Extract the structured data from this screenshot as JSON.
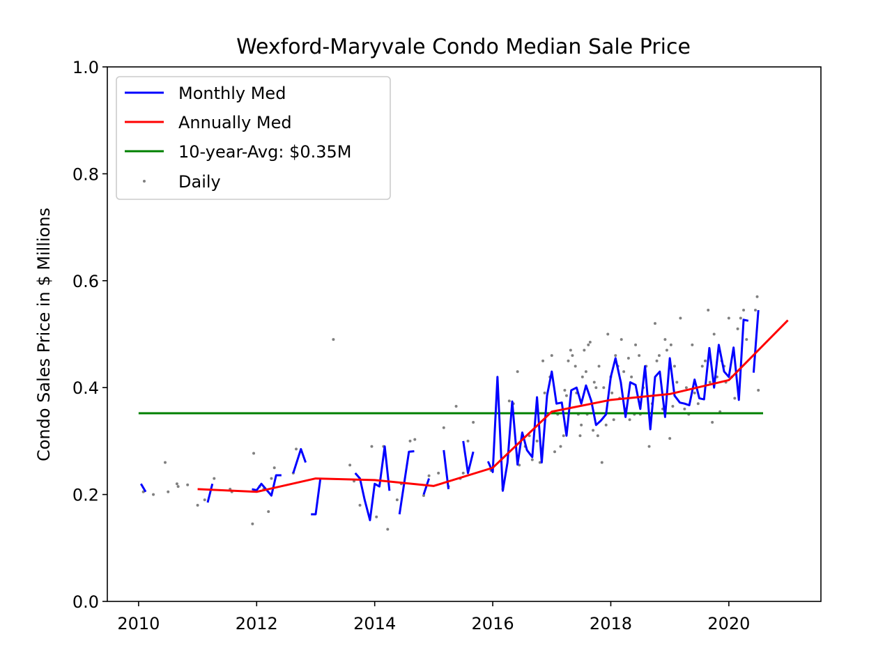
{
  "chart_data": {
    "type": "line",
    "title": "Wexford-Maryvale Condo Median Sale Price",
    "xlabel": "",
    "ylabel": "Condo Sales Price in $ Millions",
    "xlim": [
      2009.47,
      2021.56
    ],
    "ylim": [
      0.0,
      1.0
    ],
    "x_ticks": [
      2010,
      2012,
      2014,
      2016,
      2018,
      2020
    ],
    "y_ticks": [
      0.0,
      0.2,
      0.4,
      0.6,
      0.8,
      1.0
    ],
    "y_tick_labels": [
      "0.0",
      "0.2",
      "0.4",
      "0.6",
      "0.8",
      "1.0"
    ],
    "grid": false,
    "legend_position": "upper-left",
    "colors": {
      "monthly": "#0000ff",
      "annual": "#ff0000",
      "avg": "#008000",
      "daily": "#808080",
      "axes": "#000000",
      "legend_border": "#cccccc"
    },
    "legend": [
      {
        "label": "Monthly Med",
        "kind": "line",
        "color_key": "monthly"
      },
      {
        "label": "Annually Med",
        "kind": "line",
        "color_key": "annual"
      },
      {
        "label": "10-year-Avg: $0.35M",
        "kind": "line",
        "color_key": "avg"
      },
      {
        "label": "Daily",
        "kind": "dot",
        "color_key": "daily"
      }
    ],
    "series": [
      {
        "name": "Monthly Med",
        "kind": "segments",
        "segments": [
          [
            [
              2010.04,
              0.22
            ],
            [
              2010.12,
              0.205
            ]
          ],
          [
            [
              2011.17,
              0.185
            ],
            [
              2011.25,
              0.22
            ]
          ],
          [
            [
              2011.92,
              0.21
            ],
            [
              2012.0,
              0.208
            ],
            [
              2012.08,
              0.22
            ],
            [
              2012.25,
              0.198
            ],
            [
              2012.33,
              0.236
            ],
            [
              2012.42,
              0.236
            ]
          ],
          [
            [
              2012.62,
              0.24
            ],
            [
              2012.75,
              0.285
            ],
            [
              2012.83,
              0.26
            ]
          ],
          [
            [
              2012.92,
              0.163
            ],
            [
              2013.0,
              0.163
            ],
            [
              2013.08,
              0.23
            ]
          ],
          [
            [
              2013.67,
              0.24
            ],
            [
              2013.75,
              0.23
            ],
            [
              2013.83,
              0.19
            ],
            [
              2013.92,
              0.152
            ],
            [
              2014.0,
              0.22
            ],
            [
              2014.08,
              0.215
            ],
            [
              2014.17,
              0.29
            ],
            [
              2014.25,
              0.207
            ]
          ],
          [
            [
              2014.42,
              0.163
            ],
            [
              2014.58,
              0.28
            ],
            [
              2014.67,
              0.281
            ]
          ],
          [
            [
              2014.83,
              0.2
            ],
            [
              2014.92,
              0.23
            ]
          ],
          [
            [
              2015.17,
              0.283
            ],
            [
              2015.25,
              0.21
            ]
          ],
          [
            [
              2015.5,
              0.3
            ],
            [
              2015.58,
              0.24
            ],
            [
              2015.67,
              0.28
            ]
          ],
          [
            [
              2015.92,
              0.262
            ],
            [
              2016.0,
              0.242
            ],
            [
              2016.08,
              0.42
            ],
            [
              2016.17,
              0.207
            ],
            [
              2016.25,
              0.26
            ],
            [
              2016.33,
              0.374
            ],
            [
              2016.42,
              0.256
            ],
            [
              2016.5,
              0.316
            ],
            [
              2016.58,
              0.283
            ],
            [
              2016.67,
              0.27
            ],
            [
              2016.75,
              0.382
            ],
            [
              2016.83,
              0.26
            ],
            [
              2016.92,
              0.385
            ],
            [
              2017.0,
              0.43
            ],
            [
              2017.08,
              0.37
            ],
            [
              2017.17,
              0.372
            ],
            [
              2017.25,
              0.31
            ],
            [
              2017.33,
              0.395
            ],
            [
              2017.42,
              0.4
            ],
            [
              2017.5,
              0.37
            ],
            [
              2017.58,
              0.404
            ],
            [
              2017.67,
              0.375
            ],
            [
              2017.75,
              0.33
            ],
            [
              2017.83,
              0.338
            ],
            [
              2017.92,
              0.35
            ],
            [
              2018.0,
              0.42
            ],
            [
              2018.08,
              0.455
            ],
            [
              2018.17,
              0.41
            ],
            [
              2018.25,
              0.345
            ],
            [
              2018.33,
              0.41
            ],
            [
              2018.42,
              0.405
            ],
            [
              2018.5,
              0.36
            ],
            [
              2018.58,
              0.44
            ],
            [
              2018.67,
              0.322
            ],
            [
              2018.75,
              0.42
            ],
            [
              2018.83,
              0.43
            ],
            [
              2018.92,
              0.345
            ],
            [
              2019.0,
              0.455
            ],
            [
              2019.08,
              0.385
            ],
            [
              2019.17,
              0.372
            ],
            [
              2019.25,
              0.37
            ],
            [
              2019.33,
              0.367
            ],
            [
              2019.42,
              0.415
            ],
            [
              2019.5,
              0.38
            ],
            [
              2019.58,
              0.378
            ],
            [
              2019.67,
              0.474
            ],
            [
              2019.75,
              0.4
            ],
            [
              2019.83,
              0.48
            ],
            [
              2019.92,
              0.43
            ],
            [
              2020.0,
              0.42
            ],
            [
              2020.08,
              0.475
            ],
            [
              2020.17,
              0.377
            ],
            [
              2020.25,
              0.527
            ],
            [
              2020.33,
              0.525
            ]
          ],
          [
            [
              2020.42,
              0.428
            ],
            [
              2020.5,
              0.545
            ]
          ]
        ]
      },
      {
        "name": "Annually Med",
        "kind": "line",
        "points": [
          [
            2011.0,
            0.21
          ],
          [
            2012.0,
            0.205
          ],
          [
            2013.0,
            0.23
          ],
          [
            2014.0,
            0.227
          ],
          [
            2015.0,
            0.216
          ],
          [
            2016.0,
            0.25
          ],
          [
            2017.0,
            0.355
          ],
          [
            2018.0,
            0.377
          ],
          [
            2019.0,
            0.388
          ],
          [
            2020.0,
            0.414
          ],
          [
            2021.0,
            0.526
          ]
        ]
      },
      {
        "name": "10-year-Avg: $0.35M",
        "kind": "line",
        "points": [
          [
            2010.0,
            0.352
          ],
          [
            2020.58,
            0.352
          ]
        ]
      },
      {
        "name": "Daily",
        "kind": "scatter",
        "points": [
          [
            2010.08,
            0.205
          ],
          [
            2010.25,
            0.2
          ],
          [
            2010.45,
            0.26
          ],
          [
            2010.5,
            0.205
          ],
          [
            2010.65,
            0.22
          ],
          [
            2010.67,
            0.215
          ],
          [
            2010.83,
            0.218
          ],
          [
            2011.0,
            0.18
          ],
          [
            2011.12,
            0.19
          ],
          [
            2011.28,
            0.23
          ],
          [
            2011.55,
            0.21
          ],
          [
            2011.58,
            0.205
          ],
          [
            2011.93,
            0.145
          ],
          [
            2011.95,
            0.277
          ],
          [
            2012.05,
            0.215
          ],
          [
            2012.12,
            0.21
          ],
          [
            2012.2,
            0.168
          ],
          [
            2012.25,
            0.23
          ],
          [
            2012.3,
            0.25
          ],
          [
            2012.62,
            0.24
          ],
          [
            2012.67,
            0.285
          ],
          [
            2013.3,
            0.49
          ],
          [
            2013.58,
            0.255
          ],
          [
            2013.65,
            0.225
          ],
          [
            2013.75,
            0.18
          ],
          [
            2013.95,
            0.29
          ],
          [
            2014.03,
            0.158
          ],
          [
            2014.15,
            0.29
          ],
          [
            2014.22,
            0.135
          ],
          [
            2014.38,
            0.19
          ],
          [
            2014.45,
            0.22
          ],
          [
            2014.6,
            0.3
          ],
          [
            2014.68,
            0.303
          ],
          [
            2014.83,
            0.198
          ],
          [
            2014.92,
            0.235
          ],
          [
            2015.08,
            0.24
          ],
          [
            2015.17,
            0.325
          ],
          [
            2015.25,
            0.215
          ],
          [
            2015.38,
            0.365
          ],
          [
            2015.45,
            0.23
          ],
          [
            2015.5,
            0.24
          ],
          [
            2015.58,
            0.3
          ],
          [
            2015.67,
            0.335
          ],
          [
            2015.97,
            0.245
          ],
          [
            2016.17,
            0.21
          ],
          [
            2016.28,
            0.375
          ],
          [
            2016.35,
            0.37
          ],
          [
            2016.42,
            0.43
          ],
          [
            2016.45,
            0.255
          ],
          [
            2016.55,
            0.29
          ],
          [
            2016.62,
            0.31
          ],
          [
            2016.67,
            0.265
          ],
          [
            2016.75,
            0.3
          ],
          [
            2016.8,
            0.26
          ],
          [
            2016.85,
            0.45
          ],
          [
            2016.88,
            0.39
          ],
          [
            2016.97,
            0.42
          ],
          [
            2017.0,
            0.46
          ],
          [
            2017.05,
            0.28
          ],
          [
            2017.1,
            0.35
          ],
          [
            2017.15,
            0.29
          ],
          [
            2017.2,
            0.31
          ],
          [
            2017.22,
            0.395
          ],
          [
            2017.25,
            0.385
          ],
          [
            2017.28,
            0.45
          ],
          [
            2017.32,
            0.47
          ],
          [
            2017.35,
            0.46
          ],
          [
            2017.4,
            0.44
          ],
          [
            2017.42,
            0.39
          ],
          [
            2017.45,
            0.35
          ],
          [
            2017.48,
            0.31
          ],
          [
            2017.5,
            0.33
          ],
          [
            2017.52,
            0.42
          ],
          [
            2017.55,
            0.47
          ],
          [
            2017.58,
            0.43
          ],
          [
            2017.6,
            0.35
          ],
          [
            2017.62,
            0.48
          ],
          [
            2017.65,
            0.485
          ],
          [
            2017.7,
            0.32
          ],
          [
            2017.72,
            0.41
          ],
          [
            2017.75,
            0.4
          ],
          [
            2017.78,
            0.31
          ],
          [
            2017.8,
            0.44
          ],
          [
            2017.85,
            0.26
          ],
          [
            2017.88,
            0.4
          ],
          [
            2017.92,
            0.33
          ],
          [
            2017.95,
            0.5
          ],
          [
            2018.0,
            0.42
          ],
          [
            2018.02,
            0.39
          ],
          [
            2018.05,
            0.34
          ],
          [
            2018.08,
            0.46
          ],
          [
            2018.12,
            0.44
          ],
          [
            2018.15,
            0.38
          ],
          [
            2018.18,
            0.49
          ],
          [
            2018.22,
            0.43
          ],
          [
            2018.25,
            0.36
          ],
          [
            2018.3,
            0.455
          ],
          [
            2018.32,
            0.34
          ],
          [
            2018.35,
            0.42
          ],
          [
            2018.4,
            0.35
          ],
          [
            2018.42,
            0.48
          ],
          [
            2018.48,
            0.46
          ],
          [
            2018.5,
            0.35
          ],
          [
            2018.55,
            0.4
          ],
          [
            2018.6,
            0.44
          ],
          [
            2018.65,
            0.29
          ],
          [
            2018.7,
            0.37
          ],
          [
            2018.75,
            0.52
          ],
          [
            2018.78,
            0.45
          ],
          [
            2018.82,
            0.46
          ],
          [
            2018.88,
            0.36
          ],
          [
            2018.92,
            0.49
          ],
          [
            2018.95,
            0.47
          ],
          [
            2019.0,
            0.305
          ],
          [
            2019.02,
            0.48
          ],
          [
            2019.05,
            0.365
          ],
          [
            2019.08,
            0.44
          ],
          [
            2019.12,
            0.41
          ],
          [
            2019.18,
            0.53
          ],
          [
            2019.25,
            0.36
          ],
          [
            2019.28,
            0.4
          ],
          [
            2019.32,
            0.35
          ],
          [
            2019.38,
            0.48
          ],
          [
            2019.42,
            0.39
          ],
          [
            2019.48,
            0.37
          ],
          [
            2019.55,
            0.44
          ],
          [
            2019.6,
            0.45
          ],
          [
            2019.65,
            0.545
          ],
          [
            2019.68,
            0.41
          ],
          [
            2019.72,
            0.335
          ],
          [
            2019.75,
            0.5
          ],
          [
            2019.8,
            0.42
          ],
          [
            2019.85,
            0.355
          ],
          [
            2019.88,
            0.45
          ],
          [
            2019.92,
            0.44
          ],
          [
            2019.95,
            0.41
          ],
          [
            2020.0,
            0.53
          ],
          [
            2020.05,
            0.42
          ],
          [
            2020.1,
            0.38
          ],
          [
            2020.15,
            0.51
          ],
          [
            2020.2,
            0.53
          ],
          [
            2020.25,
            0.545
          ],
          [
            2020.3,
            0.49
          ],
          [
            2020.45,
            0.545
          ],
          [
            2020.48,
            0.57
          ],
          [
            2020.5,
            0.395
          ]
        ]
      }
    ]
  }
}
